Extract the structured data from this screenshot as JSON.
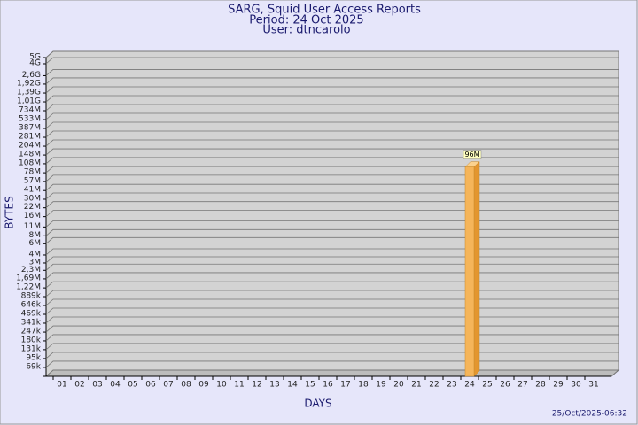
{
  "chart_data": {
    "type": "bar",
    "title": "SARG, Squid User Access Reports",
    "subtitle": [
      "Period: 24 Oct 2025",
      "User: dtncarolo"
    ],
    "x_label": "DAYS",
    "y_label": "BYTES",
    "footer": "25/Oct/2025-06:32",
    "categories": [
      "01",
      "02",
      "03",
      "04",
      "05",
      "06",
      "07",
      "08",
      "09",
      "10",
      "11",
      "12",
      "13",
      "14",
      "15",
      "16",
      "17",
      "18",
      "19",
      "20",
      "21",
      "22",
      "23",
      "24",
      "25",
      "26",
      "27",
      "28",
      "29",
      "30",
      "31"
    ],
    "values": [
      null,
      null,
      null,
      null,
      null,
      null,
      null,
      null,
      null,
      null,
      null,
      null,
      null,
      null,
      null,
      null,
      null,
      null,
      null,
      null,
      null,
      null,
      null,
      96000000,
      null,
      null,
      null,
      null,
      null,
      null,
      null
    ],
    "value_labels": [
      null,
      null,
      null,
      null,
      null,
      null,
      null,
      null,
      null,
      null,
      null,
      null,
      null,
      null,
      null,
      null,
      null,
      null,
      null,
      null,
      null,
      null,
      null,
      "96M",
      null,
      null,
      null,
      null,
      null,
      null,
      null
    ],
    "color": "#f5b55a",
    "log_scale": true,
    "grid": true,
    "ylim": [
      50000,
      5000000000
    ],
    "yticks": [
      {
        "value": 69000,
        "label": "69k"
      },
      {
        "value": 95000,
        "label": "95k"
      },
      {
        "value": 131000,
        "label": "131k"
      },
      {
        "value": 180000,
        "label": "180k"
      },
      {
        "value": 247000,
        "label": "247k"
      },
      {
        "value": 341000,
        "label": "341k"
      },
      {
        "value": 469000,
        "label": "469k"
      },
      {
        "value": 646000,
        "label": "646k"
      },
      {
        "value": 889000,
        "label": "889k"
      },
      {
        "value": 1220000,
        "label": "1,22M"
      },
      {
        "value": 1690000,
        "label": "1,69M"
      },
      {
        "value": 2300000,
        "label": "2,3M"
      },
      {
        "value": 3000000,
        "label": "3M"
      },
      {
        "value": 4000000,
        "label": "4M"
      },
      {
        "value": 6000000,
        "label": "6M"
      },
      {
        "value": 8000000,
        "label": "8M"
      },
      {
        "value": 11000000,
        "label": "11M"
      },
      {
        "value": 16000000,
        "label": "16M"
      },
      {
        "value": 22000000,
        "label": "22M"
      },
      {
        "value": 30000000,
        "label": "30M"
      },
      {
        "value": 41000000,
        "label": "41M"
      },
      {
        "value": 57000000,
        "label": "57M"
      },
      {
        "value": 78000000,
        "label": "78M"
      },
      {
        "value": 108000000,
        "label": "108M"
      },
      {
        "value": 148000000,
        "label": "148M"
      },
      {
        "value": 204000000,
        "label": "204M"
      },
      {
        "value": 281000000,
        "label": "281M"
      },
      {
        "value": 387000000,
        "label": "387M"
      },
      {
        "value": 533000000,
        "label": "533M"
      },
      {
        "value": 734000000,
        "label": "734M"
      },
      {
        "value": 1010000000,
        "label": "1,01G"
      },
      {
        "value": 1390000000,
        "label": "1,39G"
      },
      {
        "value": 1920000000,
        "label": "1,92G"
      },
      {
        "value": 2600000000,
        "label": "2,6G"
      },
      {
        "value": 4000000000,
        "label": "4G"
      },
      {
        "value": 5000000000,
        "label": "5G"
      }
    ]
  }
}
